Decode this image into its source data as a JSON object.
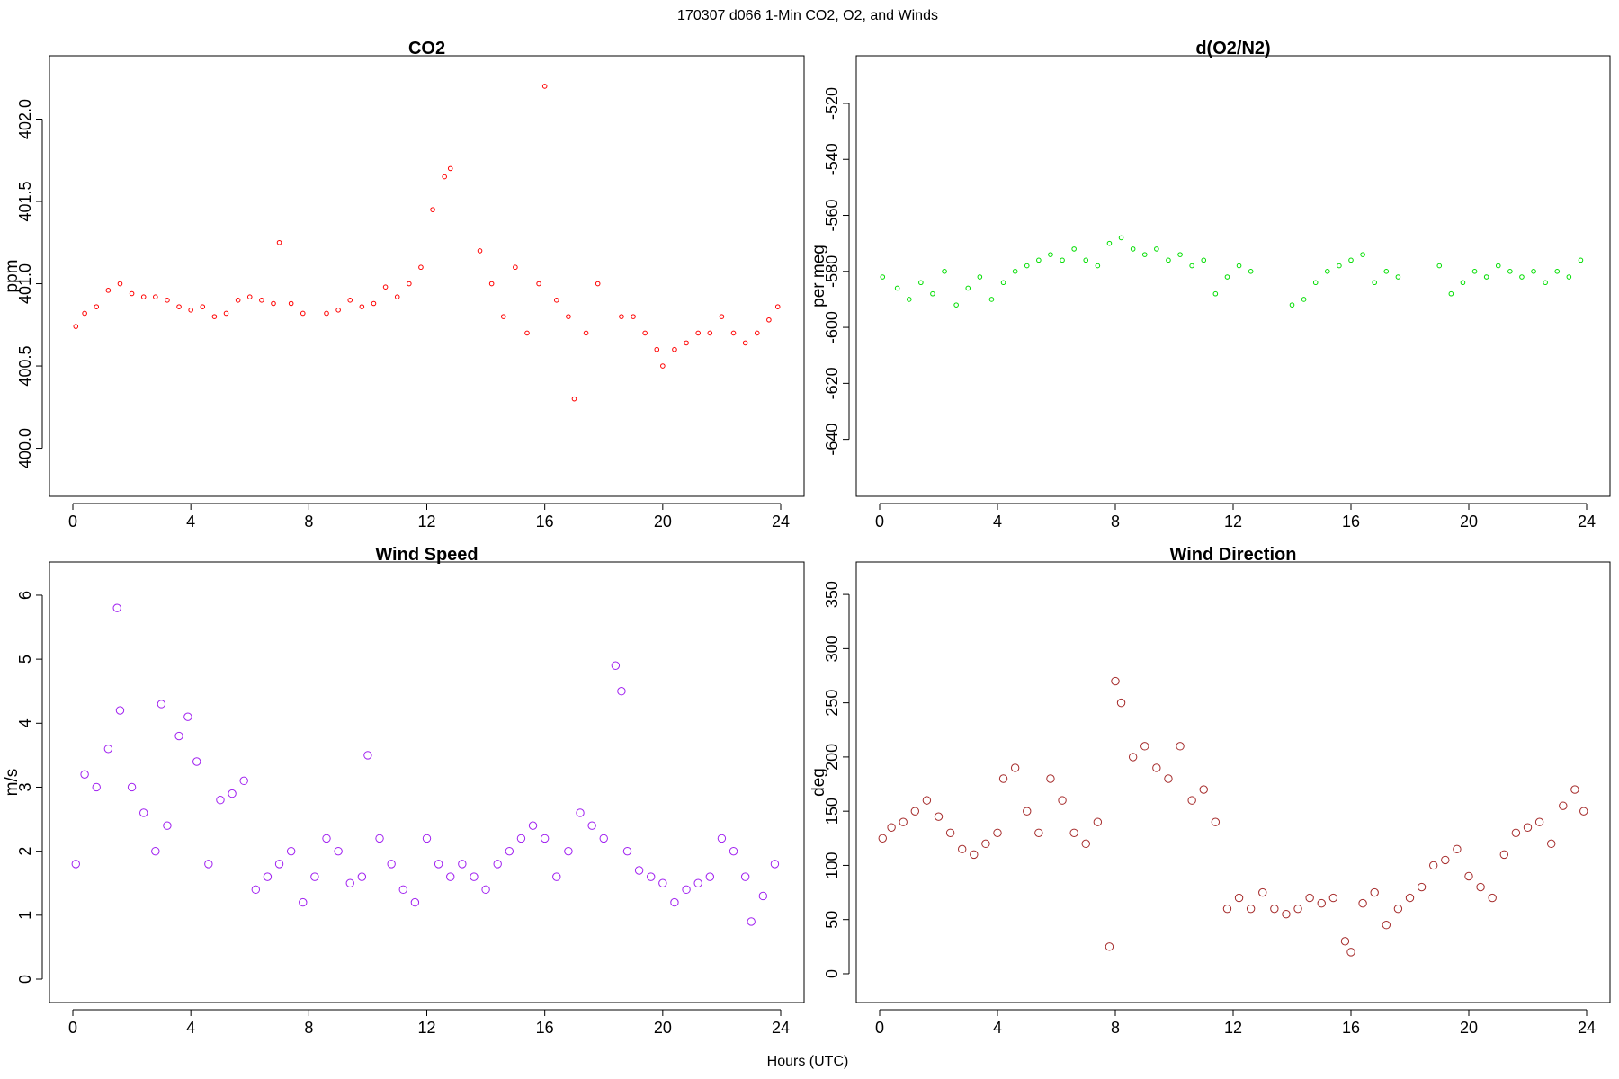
{
  "figure": {
    "title": "170307   d066   1-Min CO2, O2, and Winds",
    "xlabel": "Hours (UTC)"
  },
  "chart_data": [
    {
      "id": "co2",
      "type": "scatter",
      "title": "CO2",
      "ylabel": "ppm",
      "xlim": [
        0,
        24
      ],
      "ylim": [
        399.85,
        402.3
      ],
      "xticks": [
        0,
        4,
        8,
        12,
        16,
        20,
        24
      ],
      "yticks": [
        400.0,
        400.5,
        401.0,
        401.5,
        402.0
      ],
      "ytick_labels": [
        "400.0",
        "400.5",
        "401.0",
        "401.5",
        "402.0"
      ],
      "color": "#ff0000",
      "marker_size": "small",
      "series": [
        {
          "x": [
            0.1,
            0.4,
            0.8,
            1.2,
            1.6,
            2.0,
            2.4,
            2.8,
            3.2,
            3.6,
            4.0,
            4.4,
            4.8,
            5.2,
            5.6,
            6.0,
            6.4,
            6.8,
            7.0,
            7.4,
            7.8,
            8.6,
            9.0,
            9.4,
            9.8,
            10.2,
            10.6,
            11.0,
            11.4,
            11.8,
            12.2,
            12.6,
            12.8,
            13.8,
            14.2,
            14.6,
            15.0,
            15.4,
            15.8,
            16.0,
            16.4,
            16.8,
            17.0,
            17.4,
            17.8,
            18.6,
            19.0,
            19.4,
            19.8,
            20.0,
            20.4,
            20.8,
            21.2,
            21.6,
            22.0,
            22.4,
            22.8,
            23.2,
            23.6,
            23.9
          ],
          "y": [
            400.74,
            400.82,
            400.86,
            400.96,
            401.0,
            400.94,
            400.92,
            400.92,
            400.9,
            400.86,
            400.84,
            400.86,
            400.8,
            400.82,
            400.9,
            400.92,
            400.9,
            400.88,
            401.25,
            400.88,
            400.82,
            400.82,
            400.84,
            400.9,
            400.86,
            400.88,
            400.98,
            400.92,
            401.0,
            401.1,
            401.45,
            401.65,
            401.7,
            401.2,
            401.0,
            400.8,
            401.1,
            400.7,
            401.0,
            402.2,
            400.9,
            400.8,
            400.3,
            400.7,
            401.0,
            400.8,
            400.8,
            400.7,
            400.6,
            400.5,
            400.6,
            400.64,
            400.7,
            400.7,
            400.8,
            400.7,
            400.64,
            400.7,
            400.78,
            400.86
          ]
        }
      ]
    },
    {
      "id": "o2",
      "type": "scatter",
      "title": "d(O2/N2)",
      "ylabel": "per meg",
      "xlim": [
        0,
        24
      ],
      "ylim": [
        -652,
        -508
      ],
      "xticks": [
        0,
        4,
        8,
        12,
        16,
        20,
        24
      ],
      "yticks": [
        -640,
        -620,
        -600,
        -580,
        -560,
        -540,
        -520
      ],
      "ytick_labels": [
        "-640",
        "-620",
        "-600",
        "-580",
        "-560",
        "-540",
        "-520"
      ],
      "color": "#00dd00",
      "marker_size": "small",
      "series": [
        {
          "x": [
            0.1,
            0.6,
            1.0,
            1.4,
            1.8,
            2.2,
            2.6,
            3.0,
            3.4,
            3.8,
            4.2,
            4.6,
            5.0,
            5.4,
            5.8,
            6.2,
            6.6,
            7.0,
            7.4,
            7.8,
            8.2,
            8.6,
            9.0,
            9.4,
            9.8,
            10.2,
            10.6,
            11.0,
            11.4,
            11.8,
            12.2,
            12.6,
            14.0,
            14.4,
            14.8,
            15.2,
            15.6,
            16.0,
            16.4,
            16.8,
            17.2,
            17.6,
            19.0,
            19.4,
            19.8,
            20.2,
            20.6,
            21.0,
            21.4,
            21.8,
            22.2,
            22.6,
            23.0,
            23.4,
            23.8
          ],
          "y": [
            -582,
            -586,
            -590,
            -584,
            -588,
            -580,
            -592,
            -586,
            -582,
            -590,
            -584,
            -580,
            -578,
            -576,
            -574,
            -576,
            -572,
            -576,
            -578,
            -570,
            -568,
            -572,
            -574,
            -572,
            -576,
            -574,
            -578,
            -576,
            -588,
            -582,
            -578,
            -580,
            -592,
            -590,
            -584,
            -580,
            -578,
            -576,
            -574,
            -584,
            -580,
            -582,
            -578,
            -588,
            -584,
            -580,
            -582,
            -578,
            -580,
            -582,
            -580,
            -584,
            -580,
            -582,
            -576
          ]
        }
      ]
    },
    {
      "id": "ws",
      "type": "scatter",
      "title": "Wind Speed",
      "ylabel": "m/s",
      "xlim": [
        0,
        24
      ],
      "ylim": [
        0,
        6.3
      ],
      "xticks": [
        0,
        4,
        8,
        12,
        16,
        20,
        24
      ],
      "yticks": [
        0,
        1,
        2,
        3,
        4,
        5,
        6
      ],
      "ytick_labels": [
        "0",
        "1",
        "2",
        "3",
        "4",
        "5",
        "6"
      ],
      "color": "#a020f0",
      "marker_size": "large",
      "series": [
        {
          "x": [
            0.1,
            0.4,
            0.8,
            1.2,
            1.5,
            1.6,
            2.0,
            2.4,
            2.8,
            3.0,
            3.2,
            3.6,
            3.9,
            4.2,
            4.6,
            5.0,
            5.4,
            5.8,
            6.2,
            6.6,
            7.0,
            7.4,
            7.8,
            8.2,
            8.6,
            9.0,
            9.4,
            9.8,
            10.0,
            10.4,
            10.8,
            11.2,
            11.6,
            12.0,
            12.4,
            12.8,
            13.2,
            13.6,
            14.0,
            14.4,
            14.8,
            15.2,
            15.6,
            16.0,
            16.4,
            16.8,
            17.2,
            17.6,
            18.0,
            18.4,
            18.6,
            18.8,
            19.2,
            19.6,
            20.0,
            20.4,
            20.8,
            21.2,
            21.6,
            22.0,
            22.4,
            22.8,
            23.0,
            23.4,
            23.8
          ],
          "y": [
            1.8,
            3.2,
            3.0,
            3.6,
            5.8,
            4.2,
            3.0,
            2.6,
            2.0,
            4.3,
            2.4,
            3.8,
            4.1,
            3.4,
            1.8,
            2.8,
            2.9,
            3.1,
            1.4,
            1.6,
            1.8,
            2.0,
            1.2,
            1.6,
            2.2,
            2.0,
            1.5,
            1.6,
            3.5,
            2.2,
            1.8,
            1.4,
            1.2,
            2.2,
            1.8,
            1.6,
            1.8,
            1.6,
            1.4,
            1.8,
            2.0,
            2.2,
            2.4,
            2.2,
            1.6,
            2.0,
            2.6,
            2.4,
            2.2,
            4.9,
            4.5,
            2.0,
            1.7,
            1.6,
            1.5,
            1.2,
            1.4,
            1.5,
            1.6,
            2.2,
            2.0,
            1.6,
            0.9,
            1.3,
            1.8
          ]
        }
      ]
    },
    {
      "id": "wd",
      "type": "scatter",
      "title": "Wind Direction",
      "ylabel": "deg",
      "xlim": [
        0,
        24
      ],
      "ylim": [
        -5,
        367
      ],
      "xticks": [
        0,
        4,
        8,
        12,
        16,
        20,
        24
      ],
      "yticks": [
        0,
        50,
        100,
        150,
        200,
        250,
        300,
        350
      ],
      "ytick_labels": [
        "0",
        "50",
        "100",
        "150",
        "200",
        "250",
        "300",
        "350"
      ],
      "color": "#a52a2a",
      "marker_size": "large",
      "series": [
        {
          "x": [
            0.1,
            0.4,
            0.8,
            1.2,
            1.6,
            2.0,
            2.4,
            2.8,
            3.2,
            3.6,
            4.0,
            4.2,
            4.6,
            5.0,
            5.4,
            5.8,
            6.2,
            6.6,
            7.0,
            7.4,
            7.8,
            8.0,
            8.2,
            8.6,
            9.0,
            9.4,
            9.8,
            10.2,
            10.6,
            11.0,
            11.4,
            11.8,
            12.2,
            12.6,
            13.0,
            13.4,
            13.8,
            14.2,
            14.6,
            15.0,
            15.4,
            15.8,
            16.0,
            16.4,
            16.8,
            17.2,
            17.6,
            18.0,
            18.4,
            18.8,
            19.2,
            19.6,
            20.0,
            20.4,
            20.8,
            21.2,
            21.6,
            22.0,
            22.4,
            22.8,
            23.2,
            23.6,
            23.9
          ],
          "y": [
            125,
            135,
            140,
            150,
            160,
            145,
            130,
            115,
            110,
            120,
            130,
            180,
            190,
            150,
            130,
            180,
            160,
            130,
            120,
            140,
            25,
            270,
            250,
            200,
            210,
            190,
            180,
            210,
            160,
            170,
            140,
            60,
            70,
            60,
            75,
            60,
            55,
            60,
            70,
            65,
            70,
            30,
            20,
            65,
            75,
            45,
            60,
            70,
            80,
            100,
            105,
            115,
            90,
            80,
            70,
            110,
            130,
            135,
            140,
            120,
            155,
            170,
            150
          ]
        }
      ]
    }
  ]
}
